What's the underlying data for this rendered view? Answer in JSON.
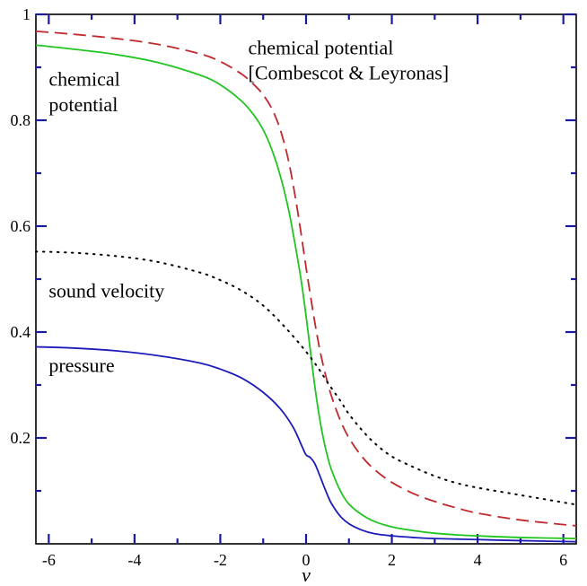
{
  "chart_data": {
    "type": "line",
    "title": "",
    "xlabel": "ν",
    "ylabel": "",
    "xlim": [
      -6.3,
      6.3
    ],
    "ylim": [
      0,
      1.0
    ],
    "x_ticks": [
      -6,
      -4,
      -2,
      0,
      2,
      4,
      6
    ],
    "x_tick_labels": [
      "-6",
      "-4",
      "-2",
      "0",
      "2",
      "4",
      "6"
    ],
    "y_ticks": [
      0.2,
      0.4,
      0.6,
      0.8,
      1.0
    ],
    "y_tick_labels": [
      "0.2",
      "0.4",
      "0.6",
      "0.8",
      "1"
    ],
    "grid": false,
    "annotations": [
      {
        "id": "cl-line1",
        "text": "chemical potential",
        "x": -1.35,
        "y": 0.925
      },
      {
        "id": "cl-line2",
        "text": "[Combescot & Leyronas]",
        "x": -1.35,
        "y": 0.877
      },
      {
        "id": "mu-line1",
        "text": "chemical",
        "x": -6.0,
        "y": 0.865
      },
      {
        "id": "mu-line2",
        "text": "potential",
        "x": -6.0,
        "y": 0.817
      },
      {
        "id": "sound",
        "text": "sound velocity",
        "x": -6.0,
        "y": 0.465
      },
      {
        "id": "pressure",
        "text": "pressure",
        "x": -6.0,
        "y": 0.325
      }
    ],
    "series": [
      {
        "key": "chemical-potential-cl",
        "color": "#c0282d",
        "style": "dashed",
        "x": [
          -6.3,
          -5.5,
          -4.5,
          -3.5,
          -2.5,
          -2.0,
          -1.5,
          -1.2,
          -1.0,
          -0.8,
          -0.6,
          -0.4,
          -0.2,
          0.0,
          0.1,
          0.2,
          0.3,
          0.4,
          0.5,
          0.6,
          0.8,
          1.0,
          1.3,
          1.6,
          2.0,
          2.5,
          3.0,
          3.5,
          4.0,
          5.0,
          6.3
        ],
        "y": [
          0.968,
          0.963,
          0.955,
          0.944,
          0.926,
          0.911,
          0.887,
          0.866,
          0.848,
          0.822,
          0.782,
          0.72,
          0.63,
          0.522,
          0.47,
          0.42,
          0.375,
          0.337,
          0.305,
          0.277,
          0.233,
          0.2,
          0.165,
          0.14,
          0.116,
          0.095,
          0.08,
          0.068,
          0.058,
          0.045,
          0.034
        ]
      },
      {
        "key": "chemical-potential",
        "color": "#22c422",
        "style": "solid",
        "x": [
          -6.3,
          -5.5,
          -4.5,
          -3.5,
          -2.5,
          -2.0,
          -1.5,
          -1.2,
          -1.0,
          -0.8,
          -0.6,
          -0.4,
          -0.2,
          -0.1,
          0.0,
          0.1,
          0.2,
          0.3,
          0.4,
          0.5,
          0.6,
          0.8,
          1.0,
          1.3,
          1.6,
          2.0,
          2.5,
          3.0,
          3.5,
          4.0,
          5.0,
          6.3
        ],
        "y": [
          0.942,
          0.935,
          0.925,
          0.91,
          0.886,
          0.867,
          0.836,
          0.808,
          0.782,
          0.745,
          0.695,
          0.628,
          0.54,
          0.49,
          0.43,
          0.365,
          0.3,
          0.245,
          0.2,
          0.165,
          0.138,
          0.1,
          0.075,
          0.055,
          0.042,
          0.032,
          0.025,
          0.02,
          0.017,
          0.015,
          0.012,
          0.01
        ]
      },
      {
        "key": "sound-velocity",
        "color": "#000000",
        "style": "dotted",
        "x": [
          -6.3,
          -5.5,
          -4.5,
          -3.5,
          -2.5,
          -2.0,
          -1.5,
          -1.0,
          -0.5,
          0.0,
          0.3,
          0.5,
          0.8,
          1.0,
          1.3,
          1.6,
          2.0,
          2.5,
          3.0,
          3.5,
          4.0,
          5.0,
          6.3
        ],
        "y": [
          0.552,
          0.55,
          0.544,
          0.533,
          0.513,
          0.498,
          0.478,
          0.45,
          0.41,
          0.363,
          0.33,
          0.305,
          0.27,
          0.245,
          0.215,
          0.19,
          0.165,
          0.145,
          0.128,
          0.115,
          0.106,
          0.092,
          0.074
        ]
      },
      {
        "key": "pressure",
        "color": "#1c1cb8",
        "style": "solid",
        "x": [
          -6.3,
          -5.5,
          -4.5,
          -3.5,
          -2.5,
          -2.0,
          -1.5,
          -1.0,
          -0.6,
          -0.3,
          -0.1,
          0.0,
          0.1,
          0.2,
          0.3,
          0.4,
          0.5,
          0.6,
          0.8,
          1.0,
          1.3,
          1.6,
          2.0,
          2.5,
          3.0,
          4.0,
          5.0,
          6.3
        ],
        "y": [
          0.372,
          0.37,
          0.365,
          0.356,
          0.342,
          0.33,
          0.313,
          0.286,
          0.255,
          0.22,
          0.185,
          0.168,
          0.163,
          0.152,
          0.133,
          0.112,
          0.092,
          0.075,
          0.052,
          0.038,
          0.026,
          0.019,
          0.015,
          0.012,
          0.01,
          0.008,
          0.006,
          0.004
        ]
      }
    ]
  }
}
